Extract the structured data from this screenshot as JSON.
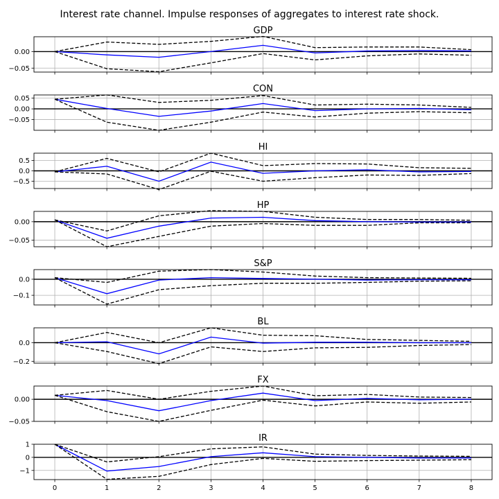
{
  "chart_data": {
    "type": "line",
    "title": "Interest rate channel. Impulse responses of aggregates to interest rate shock.",
    "x": [
      0,
      1,
      2,
      3,
      4,
      5,
      6,
      7,
      8
    ],
    "x_tick_labels": [
      "0",
      "1",
      "2",
      "3",
      "4",
      "5",
      "6",
      "7",
      "8"
    ],
    "grid": true,
    "colors": {
      "irf": "#0000ff",
      "band": "#000000",
      "zero_line": "#000000",
      "grid": "#b0b0b0"
    },
    "panels": [
      {
        "title": "GDP",
        "ylim": [
          -0.062,
          0.045
        ],
        "yticks": [
          -0.05,
          0.0
        ],
        "ytick_labels": [
          "−0.05",
          "0.00"
        ],
        "series": [
          {
            "role": "irf",
            "values": [
              0.0,
              -0.01,
              -0.017,
              0.0,
              0.019,
              -0.004,
              0.002,
              0.003,
              0.002
            ]
          },
          {
            "role": "upper",
            "values": [
              0.0,
              0.029,
              0.022,
              0.031,
              0.046,
              0.012,
              0.014,
              0.014,
              0.006
            ]
          },
          {
            "role": "lower",
            "values": [
              0.0,
              -0.052,
              -0.061,
              -0.034,
              -0.006,
              -0.025,
              -0.013,
              -0.007,
              -0.011
            ]
          }
        ]
      },
      {
        "title": "CON",
        "ylim": [
          -0.1,
          0.065
        ],
        "yticks": [
          -0.05,
          0.0,
          0.05
        ],
        "ytick_labels": [
          "−0.05",
          "0.00",
          "0.05"
        ],
        "series": [
          {
            "role": "irf",
            "values": [
              0.045,
              0.002,
              -0.035,
              -0.01,
              0.025,
              -0.008,
              0.0,
              0.002,
              -0.004
            ]
          },
          {
            "role": "upper",
            "values": [
              0.045,
              0.065,
              0.03,
              0.04,
              0.062,
              0.018,
              0.022,
              0.018,
              0.007
            ]
          },
          {
            "role": "lower",
            "values": [
              0.045,
              -0.062,
              -0.1,
              -0.062,
              -0.015,
              -0.038,
              -0.02,
              -0.013,
              -0.018
            ]
          }
        ]
      },
      {
        "title": "HI",
        "ylim": [
          -0.85,
          0.85
        ],
        "yticks": [
          -0.5,
          0.0,
          0.5
        ],
        "ytick_labels": [
          "−0.5",
          "0.0",
          "0.5"
        ],
        "series": [
          {
            "role": "irf",
            "values": [
              -0.05,
              0.22,
              -0.5,
              0.42,
              -0.12,
              0.0,
              0.05,
              -0.05,
              -0.03
            ]
          },
          {
            "role": "upper",
            "values": [
              -0.05,
              0.6,
              -0.05,
              0.85,
              0.25,
              0.35,
              0.33,
              0.15,
              0.12
            ]
          },
          {
            "role": "lower",
            "values": [
              -0.05,
              -0.15,
              -0.9,
              -0.02,
              -0.5,
              -0.33,
              -0.2,
              -0.22,
              -0.13
            ]
          }
        ]
      },
      {
        "title": "HP",
        "ylim": [
          -0.068,
          0.028
        ],
        "yticks": [
          -0.05,
          0.0
        ],
        "ytick_labels": [
          "−0.05",
          "0.00"
        ],
        "series": [
          {
            "role": "irf",
            "values": [
              0.005,
              -0.045,
              -0.012,
              0.01,
              0.012,
              0.003,
              0.0,
              -0.001,
              -0.001
            ]
          },
          {
            "role": "upper",
            "values": [
              0.005,
              -0.025,
              0.016,
              0.03,
              0.028,
              0.012,
              0.006,
              0.006,
              0.004
            ]
          },
          {
            "role": "lower",
            "values": [
              0.005,
              -0.068,
              -0.04,
              -0.012,
              -0.005,
              -0.01,
              -0.01,
              -0.003,
              -0.003
            ]
          }
        ]
      },
      {
        "title": "S&P",
        "ylim": [
          -0.16,
          0.06
        ],
        "yticks": [
          -0.1,
          0.0
        ],
        "ytick_labels": [
          "−0.1",
          "0.0"
        ],
        "series": [
          {
            "role": "irf",
            "values": [
              0.01,
              -0.09,
              -0.005,
              0.01,
              0.005,
              0.0,
              -0.005,
              -0.003,
              -0.003
            ]
          },
          {
            "role": "upper",
            "values": [
              0.01,
              -0.02,
              0.05,
              0.06,
              0.045,
              0.02,
              0.01,
              0.008,
              0.006
            ]
          },
          {
            "role": "lower",
            "values": [
              0.01,
              -0.155,
              -0.065,
              -0.04,
              -0.025,
              -0.025,
              -0.02,
              -0.012,
              -0.01
            ]
          }
        ]
      },
      {
        "title": "BL",
        "ylim": [
          -0.22,
          0.16
        ],
        "yticks": [
          -0.2,
          0.0
        ],
        "ytick_labels": [
          "−0.2",
          "0.0"
        ],
        "series": [
          {
            "role": "irf",
            "values": [
              0.0,
              0.01,
              -0.12,
              0.06,
              -0.005,
              0.005,
              0.005,
              0.0,
              0.0
            ]
          },
          {
            "role": "upper",
            "values": [
              0.0,
              0.11,
              0.0,
              0.16,
              0.08,
              0.075,
              0.035,
              0.025,
              0.015
            ]
          },
          {
            "role": "lower",
            "values": [
              0.0,
              -0.095,
              -0.225,
              -0.045,
              -0.095,
              -0.055,
              -0.05,
              -0.03,
              -0.02
            ]
          }
        ]
      },
      {
        "title": "FX",
        "ylim": [
          -0.05,
          0.03
        ],
        "yticks": [
          -0.05,
          0.0
        ],
        "ytick_labels": [
          "−0.05",
          "0.00"
        ],
        "series": [
          {
            "role": "irf",
            "values": [
              0.009,
              -0.003,
              -0.026,
              -0.003,
              0.014,
              -0.003,
              0.002,
              -0.001,
              0.0
            ]
          },
          {
            "role": "upper",
            "values": [
              0.009,
              0.02,
              0.0,
              0.018,
              0.03,
              0.008,
              0.011,
              0.005,
              0.004
            ]
          },
          {
            "role": "lower",
            "values": [
              0.009,
              -0.028,
              -0.05,
              -0.025,
              -0.002,
              -0.015,
              -0.006,
              -0.009,
              -0.006
            ]
          }
        ]
      },
      {
        "title": "IR",
        "ylim": [
          -1.7,
          1.0
        ],
        "yticks": [
          -1,
          0,
          1
        ],
        "ytick_labels": [
          "−1",
          "0",
          "1"
        ],
        "series": [
          {
            "role": "irf",
            "values": [
              1.0,
              -1.05,
              -0.7,
              0.05,
              0.35,
              0.05,
              0.0,
              -0.05,
              -0.05
            ]
          },
          {
            "role": "upper",
            "values": [
              1.0,
              -0.35,
              0.05,
              0.65,
              0.8,
              0.25,
              0.15,
              0.1,
              0.08
            ]
          },
          {
            "role": "lower",
            "values": [
              1.0,
              -1.68,
              -1.45,
              -0.55,
              -0.08,
              -0.3,
              -0.25,
              -0.22,
              -0.18
            ]
          }
        ]
      }
    ]
  }
}
